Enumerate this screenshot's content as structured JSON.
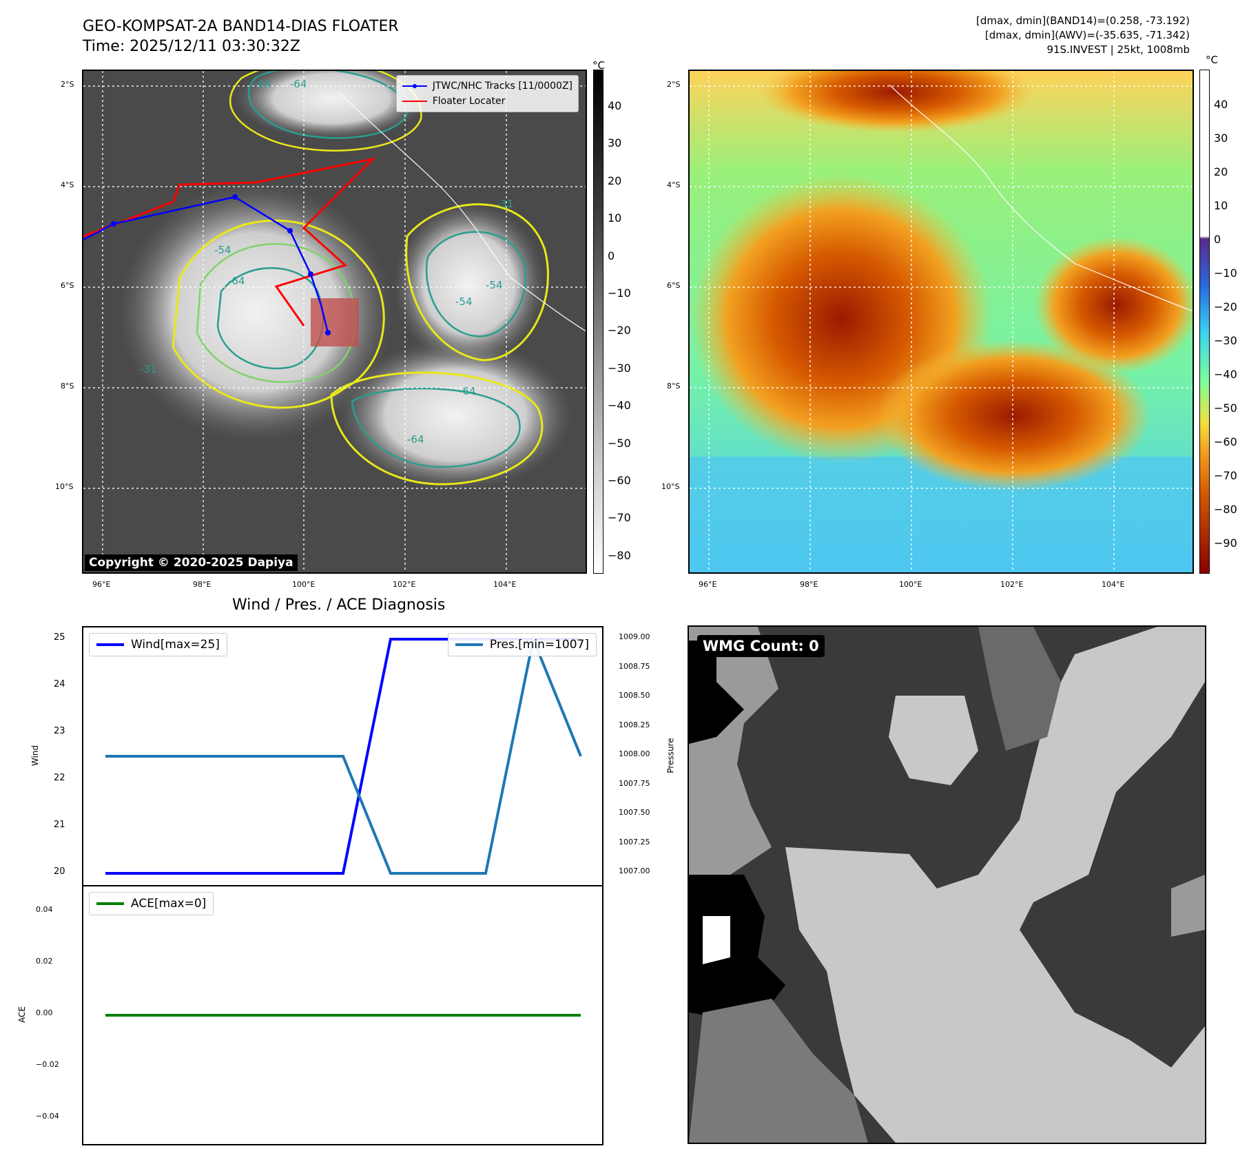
{
  "header": {
    "title_line1": "GEO-KOMPSAT-2A BAND14-DIAS FLOATER",
    "title_line2": "Time: 2025/12/11 03:30:32Z",
    "info_line1": "[dmax, dmin](BAND14)=(0.258, -73.192)",
    "info_line2": "[dmax, dmin](AWV)=(-35.635, -71.342)",
    "info_line3": "91S.INVEST | 25kt, 1008mb"
  },
  "map": {
    "lon_ticks": [
      "96°E",
      "98°E",
      "100°E",
      "102°E",
      "104°E"
    ],
    "lat_ticks": [
      "2°S",
      "4°S",
      "6°S",
      "8°S",
      "10°S"
    ],
    "contour_labels": [
      "-64",
      "-54",
      "-64",
      "-64",
      "-54",
      "-64",
      "-64",
      "-31",
      "-31",
      "-54"
    ],
    "legend_tracks": "JTWC/NHC Tracks [11/0000Z]",
    "legend_floater": "Floater Locater",
    "copyright": "Copyright © 2020-2025 Dapiya",
    "track_color": "#0000ff",
    "floater_color": "#ff0000"
  },
  "colorbar_left": {
    "unit": "°C",
    "ticks": [
      "40",
      "30",
      "20",
      "10",
      "0",
      "−10",
      "−20",
      "−30",
      "−40",
      "−50",
      "−60",
      "−70",
      "−80"
    ]
  },
  "colorbar_right": {
    "unit": "°C",
    "ticks": [
      "40",
      "30",
      "20",
      "10",
      "0",
      "−10",
      "−20",
      "−30",
      "−40",
      "−50",
      "−60",
      "−70",
      "−80",
      "−90"
    ]
  },
  "wmg": {
    "label": "WMG Count: 0"
  },
  "chart_data": [
    {
      "type": "line",
      "title": "Wind / Pres. / ACE Diagnosis",
      "x": [
        0,
        1,
        2,
        3,
        4,
        5,
        6,
        7,
        8,
        9,
        10
      ],
      "series": [
        {
          "name": "Wind[max=25]",
          "axis": "left",
          "values": [
            20,
            20,
            20,
            20,
            20,
            20,
            25,
            25,
            25,
            25,
            25
          ],
          "color": "#0000ff"
        },
        {
          "name": "Pres.[min=1007]",
          "axis": "right",
          "values": [
            1008,
            1008,
            1008,
            1008,
            1008,
            1008,
            1007,
            1007,
            1007,
            1009,
            1008
          ],
          "color": "#1f77b4"
        }
      ],
      "ylabel": "Wind",
      "ylabel_right": "Pressure",
      "ylim": [
        20,
        25
      ],
      "ylim_right": [
        1007,
        1009
      ],
      "yticks": [
        "25",
        "24",
        "23",
        "22",
        "21",
        "20"
      ],
      "yticks_right": [
        "1009.00",
        "1008.75",
        "1008.50",
        "1008.25",
        "1008.00",
        "1007.75",
        "1007.50",
        "1007.25",
        "1007.00"
      ]
    },
    {
      "type": "line",
      "x": [
        0,
        1,
        2,
        3,
        4,
        5,
        6,
        7,
        8,
        9,
        10
      ],
      "series": [
        {
          "name": "ACE[max=0]",
          "values": [
            0,
            0,
            0,
            0,
            0,
            0,
            0,
            0,
            0,
            0,
            0
          ],
          "color": "#008000"
        }
      ],
      "ylabel": "ACE",
      "ylim": [
        -0.05,
        0.05
      ],
      "yticks": [
        "0.04",
        "0.02",
        "0.00",
        "−0.02",
        "−0.04"
      ]
    }
  ]
}
